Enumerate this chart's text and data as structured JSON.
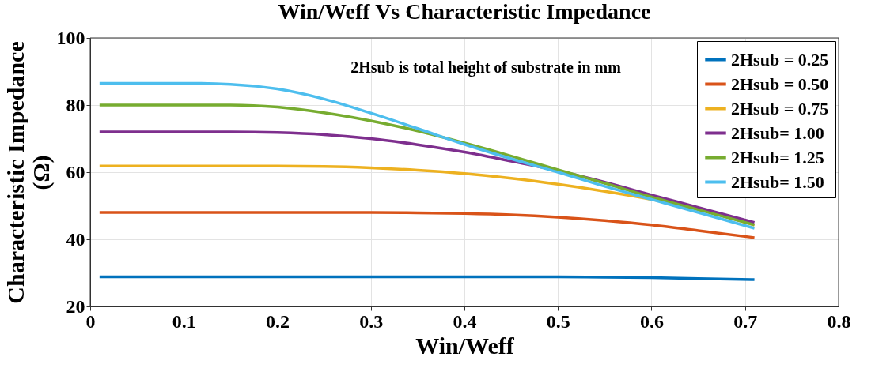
{
  "chart_data": {
    "type": "line",
    "title": "Win/Weff Vs Characteristic Impedance",
    "xlabel": "Win/Weff",
    "ylabel": "Characteristic Impedance\n(Ω)",
    "annotations": [
      "2Hsub is total height of substrate in mm"
    ],
    "x": [
      0.01,
      0.05,
      0.1,
      0.15,
      0.2,
      0.25,
      0.3,
      0.35,
      0.4,
      0.45,
      0.5,
      0.55,
      0.6,
      0.65,
      0.71
    ],
    "series": [
      {
        "name": "2Hsub = 0.25",
        "color": "#0072bd",
        "values": [
          28.8,
          28.8,
          28.8,
          28.8,
          28.8,
          28.8,
          28.8,
          28.8,
          28.8,
          28.8,
          28.8,
          28.7,
          28.6,
          28.3,
          28.0
        ]
      },
      {
        "name": "2Hsub = 0.50",
        "color": "#d95319",
        "values": [
          48,
          48,
          48,
          48,
          48,
          48,
          48,
          47.9,
          47.7,
          47.3,
          46.6,
          45.6,
          44.3,
          42.6,
          40.5
        ]
      },
      {
        "name": "2Hsub = 0.75",
        "color": "#edb120",
        "values": [
          61.8,
          61.8,
          61.8,
          61.8,
          61.8,
          61.7,
          61.3,
          60.6,
          59.6,
          58.2,
          56.4,
          54.3,
          51.9,
          49.0,
          44.2
        ]
      },
      {
        "name": "2Hsub= 1.00",
        "color": "#7e2f8e",
        "values": [
          72,
          72,
          72,
          72,
          71.8,
          71.2,
          70.0,
          68.2,
          66.0,
          63.3,
          60.4,
          57.0,
          53.2,
          49.5,
          45.0
        ]
      },
      {
        "name": "2Hsub= 1.25",
        "color": "#77ac30",
        "values": [
          80,
          80,
          80,
          80,
          79.4,
          77.7,
          75.3,
          72.3,
          68.7,
          64.8,
          60.7,
          56.7,
          52.6,
          48.8,
          44.3
        ]
      },
      {
        "name": "2Hsub= 1.50",
        "color": "#4dbeee",
        "values": [
          86.5,
          86.5,
          86.5,
          86.2,
          84.8,
          81.8,
          77.6,
          73.0,
          68.3,
          64.0,
          60.0,
          55.8,
          51.9,
          48.0,
          43.3
        ]
      }
    ],
    "xlim": [
      0,
      0.8
    ],
    "xticks": [
      0,
      0.1,
      0.2,
      0.3,
      0.4,
      0.5,
      0.6,
      0.7,
      0.8
    ],
    "ylim": [
      20,
      100
    ],
    "yticks": [
      20,
      40,
      60,
      80,
      100
    ],
    "grid": true,
    "legend": "top right",
    "marker": "none",
    "line_style": "solid"
  }
}
